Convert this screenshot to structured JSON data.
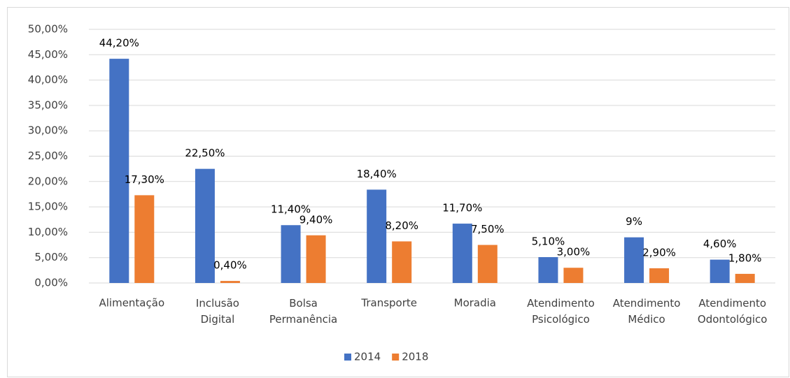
{
  "chart_data": {
    "type": "bar",
    "categories": [
      "Alimentação",
      "Inclusão Digital",
      "Bolsa Permanência",
      "Transporte",
      "Moradia",
      "Atendimento Psicológico",
      "Atendimento Médico",
      "Atendimento Odontológico"
    ],
    "series": [
      {
        "name": "2014",
        "color": "#4472c4",
        "values": [
          44.2,
          22.5,
          11.4,
          18.4,
          11.7,
          5.1,
          9,
          4.6
        ],
        "value_labels": [
          "44,20%",
          "22,50%",
          "11,40%",
          "18,40%",
          "11,70%",
          "5,10%",
          "9%",
          "4,60%"
        ]
      },
      {
        "name": "2018",
        "color": "#ed7d31",
        "values": [
          17.3,
          0.4,
          9.4,
          8.2,
          7.5,
          3.0,
          2.9,
          1.8
        ],
        "value_labels": [
          "17,30%",
          "0,40%",
          "9,40%",
          "8,20%",
          "7,50%",
          "3,00%",
          "2,90%",
          "1,80%"
        ]
      }
    ],
    "ylim": [
      0,
      50
    ],
    "yticks": [
      {
        "value": 0,
        "label": "0,00%"
      },
      {
        "value": 5,
        "label": "5,00%"
      },
      {
        "value": 10,
        "label": "10,00%"
      },
      {
        "value": 15,
        "label": "15,00%"
      },
      {
        "value": 20,
        "label": "20,00%"
      },
      {
        "value": 25,
        "label": "25,00%"
      },
      {
        "value": 30,
        "label": "30,00%"
      },
      {
        "value": 35,
        "label": "35,00%"
      },
      {
        "value": 40,
        "label": "40,00%"
      },
      {
        "value": 45,
        "label": "45,00%"
      },
      {
        "value": 50,
        "label": "50,00%"
      }
    ],
    "grid": true,
    "legend": "bottom"
  }
}
